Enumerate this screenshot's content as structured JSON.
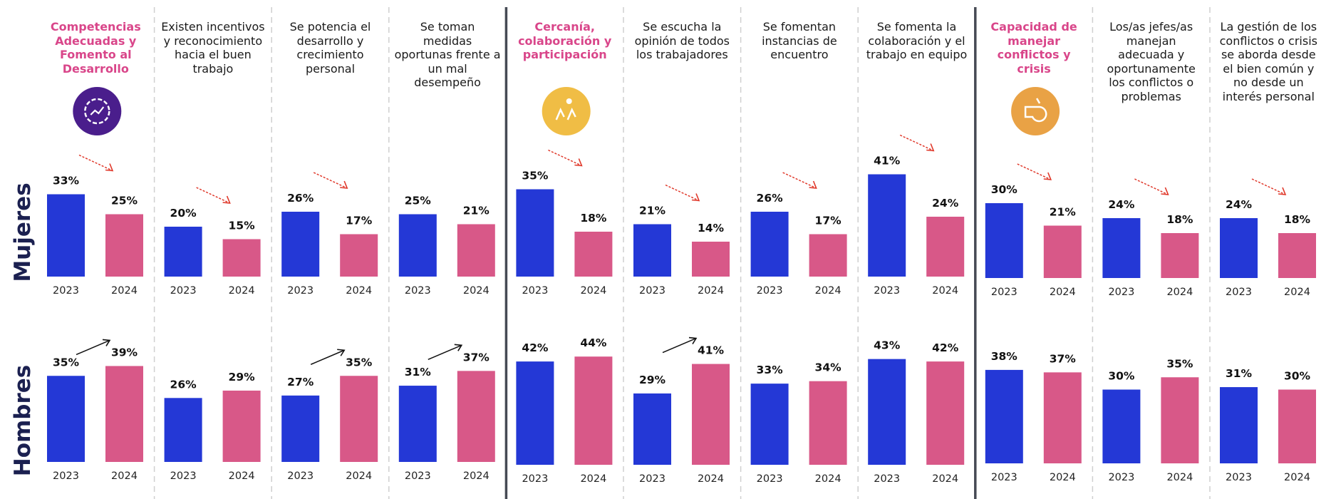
{
  "chart_data": [
    {
      "type": "bar",
      "row_label": "Mujeres",
      "categories": [
        "2023",
        "2024"
      ],
      "colors": {
        "2023": "#2438d6",
        "2024": "#d85888"
      },
      "groups": [
        {
          "title": "Competencias Adecuadas y Fomento al Desarrollo",
          "is_category": true,
          "values": [
            33,
            25
          ],
          "labels": [
            "33%",
            "25%"
          ],
          "trend": "down"
        },
        {
          "title": "Existen incentivos y reconocimiento hacia el buen trabajo",
          "is_category": false,
          "values": [
            20,
            15
          ],
          "labels": [
            "20%",
            "15%"
          ],
          "trend": "down"
        },
        {
          "title": "Se potencia el desarrollo y crecimiento personal",
          "is_category": false,
          "values": [
            26,
            17
          ],
          "labels": [
            "26%",
            "17%"
          ],
          "trend": "down"
        },
        {
          "title": "Se toman medidas oportunas frente a un mal desempeño",
          "is_category": false,
          "values": [
            25,
            21
          ],
          "labels": [
            "25%",
            "21%"
          ],
          "trend": ""
        },
        {
          "title": "Cercanía, colaboración y participación",
          "is_category": true,
          "values": [
            35,
            18
          ],
          "labels": [
            "35%",
            "18%"
          ],
          "trend": "down"
        },
        {
          "title": "Se escucha la opinión de todos los trabajadores",
          "is_category": false,
          "values": [
            21,
            14
          ],
          "labels": [
            "21%",
            "14%"
          ],
          "trend": "down"
        },
        {
          "title": "Se fomentan instancias de encuentro",
          "is_category": false,
          "values": [
            26,
            17
          ],
          "labels": [
            "26%",
            "17%"
          ],
          "trend": "down"
        },
        {
          "title": "Se fomenta la colaboración y el trabajo en equipo",
          "is_category": false,
          "values": [
            41,
            24
          ],
          "labels": [
            "41%",
            "24%"
          ],
          "trend": "down"
        },
        {
          "title": "Capacidad de manejar conflictos y crisis",
          "is_category": true,
          "values": [
            30,
            21
          ],
          "labels": [
            "30%",
            "21%"
          ],
          "trend": "down"
        },
        {
          "title": "Los/as jefes/as manejan adecuada y oportunamente los conflictos o problemas",
          "is_category": false,
          "values": [
            24,
            18
          ],
          "labels": [
            "24%",
            "18%"
          ],
          "trend": "down"
        },
        {
          "title": "La gestión de los conflictos o crisis se aborda desde el bien común y no desde un interés personal",
          "is_category": false,
          "values": [
            24,
            18
          ],
          "labels": [
            "24%",
            "18%"
          ],
          "trend": "down"
        }
      ]
    },
    {
      "type": "bar",
      "row_label": "Hombres",
      "categories": [
        "2023",
        "2024"
      ],
      "colors": {
        "2023": "#2438d6",
        "2024": "#d85888"
      },
      "groups": [
        {
          "values": [
            35,
            39
          ],
          "labels": [
            "35%",
            "39%"
          ],
          "trend": "up"
        },
        {
          "values": [
            26,
            29
          ],
          "labels": [
            "26%",
            "29%"
          ],
          "trend": ""
        },
        {
          "values": [
            27,
            35
          ],
          "labels": [
            "27%",
            "35%"
          ],
          "trend": "up"
        },
        {
          "values": [
            31,
            37
          ],
          "labels": [
            "31%",
            "37%"
          ],
          "trend": "up"
        },
        {
          "values": [
            42,
            44
          ],
          "labels": [
            "42%",
            "44%"
          ],
          "trend": ""
        },
        {
          "values": [
            29,
            41
          ],
          "labels": [
            "29%",
            "41%"
          ],
          "trend": "up"
        },
        {
          "values": [
            33,
            34
          ],
          "labels": [
            "33%",
            "34%"
          ],
          "trend": ""
        },
        {
          "values": [
            43,
            42
          ],
          "labels": [
            "43%",
            "42%"
          ],
          "trend": ""
        },
        {
          "values": [
            38,
            37
          ],
          "labels": [
            "38%",
            "37%"
          ],
          "trend": ""
        },
        {
          "values": [
            30,
            35
          ],
          "labels": [
            "30%",
            "35%"
          ],
          "trend": ""
        },
        {
          "values": [
            31,
            30
          ],
          "labels": [
            "31%",
            "30%"
          ],
          "trend": ""
        }
      ]
    }
  ],
  "icons": [
    {
      "name": "gear-growth-icon",
      "color": "#4a1e8c"
    },
    {
      "name": "hands-collaboration-icon",
      "color": "#f0bd45"
    },
    {
      "name": "whistle-icon",
      "color": "#e9a245"
    }
  ]
}
